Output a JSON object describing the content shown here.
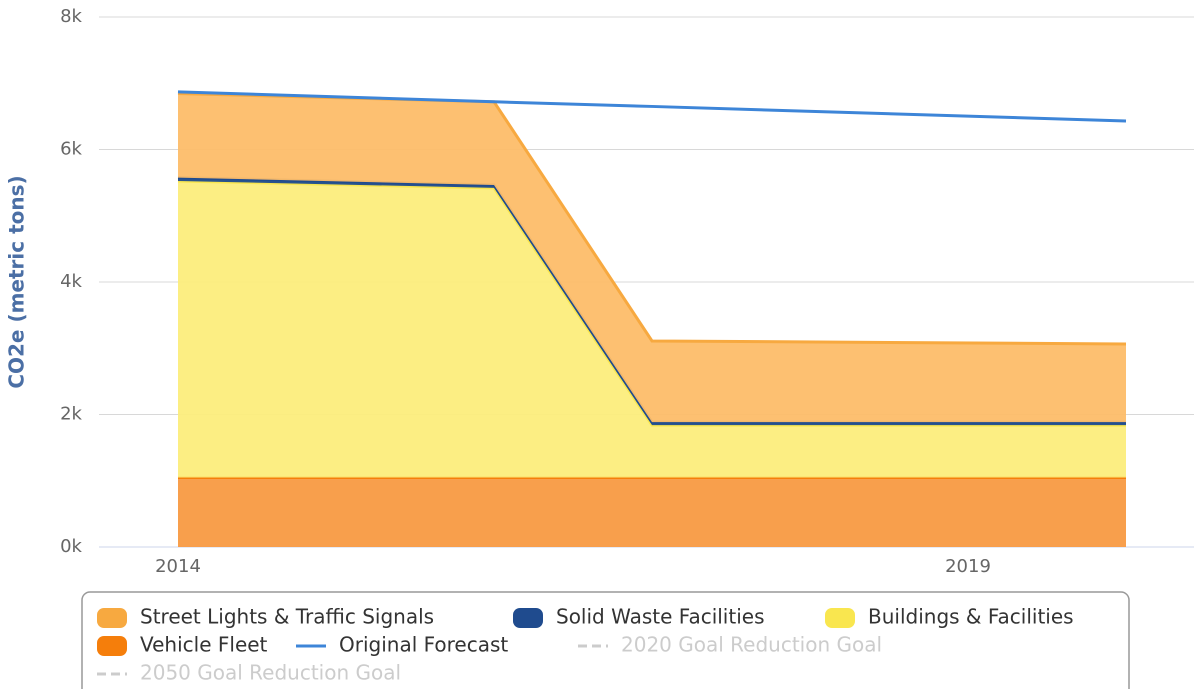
{
  "chart_data": {
    "type": "area",
    "stacked": true,
    "y_label": "CO2e (metric tons)",
    "x": [
      2014,
      2016,
      2017,
      2020
    ],
    "xlim": [
      2013.5,
      2020.5
    ],
    "xticks": [
      2014,
      2019
    ],
    "ylim": [
      0,
      8000
    ],
    "yticks": [
      {
        "value": 0,
        "label": "0k"
      },
      {
        "value": 2000,
        "label": "2k"
      },
      {
        "value": 4000,
        "label": "4k"
      },
      {
        "value": 6000,
        "label": "6k"
      },
      {
        "value": 8000,
        "label": "8k"
      }
    ],
    "grid": true,
    "legend": "bottom",
    "series": [
      {
        "name": "Street Lights & Traffic Signals",
        "kind": "area",
        "color": "#fdbd69",
        "line_color": "#f7a940",
        "values": [
          1270,
          1255,
          1225,
          1180
        ]
      },
      {
        "name": "Solid Waste Facilities",
        "kind": "area",
        "color": "#1f4b8e",
        "line_color": "#1f4b8e",
        "values": [
          50,
          45,
          45,
          45
        ]
      },
      {
        "name": "Buildings & Facilities",
        "kind": "area",
        "color": "#fced7c",
        "line_color": "#f9e64f",
        "values": [
          4475,
          4370,
          790,
          790
        ]
      },
      {
        "name": "Vehicle Fleet",
        "kind": "area",
        "color": "#f89a42",
        "line_color": "#f57e0b",
        "values": [
          1050,
          1050,
          1050,
          1050
        ]
      },
      {
        "name": "Original Forecast",
        "kind": "line",
        "color": "#3d85d8",
        "values": [
          6870,
          6720,
          6650,
          6430
        ]
      }
    ],
    "hidden_series": [
      {
        "name": "2020 Goal Reduction Goal",
        "color": "#cccccc"
      },
      {
        "name": "2050 Goal Reduction Goal",
        "color": "#cccccc"
      }
    ]
  }
}
